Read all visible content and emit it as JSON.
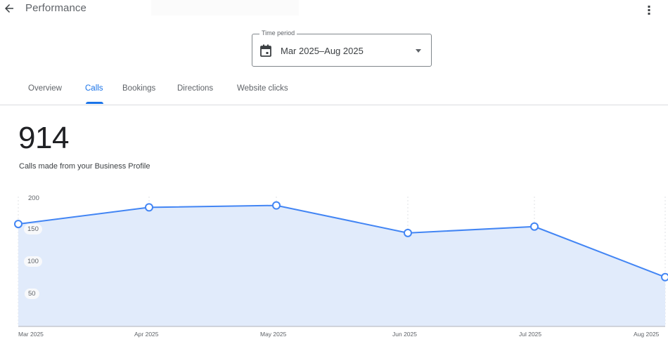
{
  "header": {
    "title": "Performance",
    "back_icon": "arrow-back-icon",
    "menu_icon": "more-vert-icon"
  },
  "time_period": {
    "label": "Time period",
    "value": "Mar 2025–Aug 2025",
    "icon": "calendar-icon",
    "dropdown_icon": "caret-down-icon"
  },
  "tabs": [
    {
      "label": "Overview",
      "active": false
    },
    {
      "label": "Calls",
      "active": true
    },
    {
      "label": "Bookings",
      "active": false
    },
    {
      "label": "Directions",
      "active": false
    },
    {
      "label": "Website clicks",
      "active": false
    }
  ],
  "metric": {
    "value": "914",
    "description": "Calls made from your Business Profile"
  },
  "colors": {
    "accent": "#1a73e8",
    "line": "#4285f4",
    "area_fill": "#e1ebfb",
    "text_primary": "#202124",
    "text_secondary": "#5f6368"
  },
  "chart_data": {
    "type": "area",
    "title": "Calls made from your Business Profile",
    "categories": [
      "Mar 2025",
      "Apr 2025",
      "May 2025",
      "Jun 2025",
      "Jul 2025",
      "Aug 2025"
    ],
    "series": [
      {
        "name": "Calls",
        "values": [
          160,
          186,
          189,
          146,
          156,
          77
        ]
      }
    ],
    "total": 914,
    "y_ticks": [
      "200",
      "150",
      "100",
      "50"
    ],
    "xlabel": "",
    "ylabel": "",
    "ylim": [
      0,
      200
    ],
    "grid": "vertical dotted",
    "legend": "none"
  }
}
